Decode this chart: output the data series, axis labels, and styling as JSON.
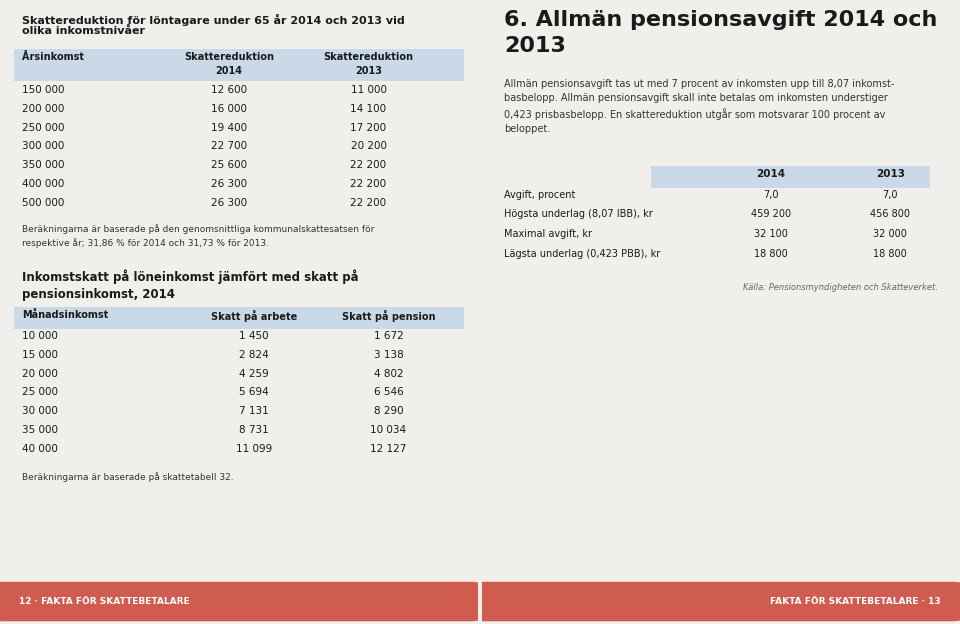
{
  "bg_color": "#f0efeb",
  "header_bg": "#c9d9e8",
  "footer_bg": "#d05c50",
  "footer_text_left": "12 · FAKTA FÖR SKATTEBETALARE",
  "footer_text_right": "FAKTA FÖR SKATTEBETALARE · 13",
  "title1_line1": "Skattereduktion för löntagare under 65 år 2014 och 2013 vid",
  "title1_line2": "olika inkomstnivåer",
  "table1_header1": [
    "Årsinkomst",
    "Skattereduktion",
    "Skattereduktion"
  ],
  "table1_header2": [
    "",
    "2014",
    "2013"
  ],
  "table1_rows": [
    [
      "150 000",
      "12 600",
      "11 000"
    ],
    [
      "200 000",
      "16 000",
      "14 100"
    ],
    [
      "250 000",
      "19 400",
      "17 200"
    ],
    [
      "300 000",
      "22 700",
      "20 200"
    ],
    [
      "350 000",
      "25 600",
      "22 200"
    ],
    [
      "400 000",
      "26 300",
      "22 200"
    ],
    [
      "500 000",
      "26 300",
      "22 200"
    ]
  ],
  "footnote1": "Beräkningarna är baserade på den genomsnittliga kommunalskattesatsen för\nrespektive år; 31,86 % för 2014 och 31,73 % för 2013.",
  "title2": "Inkomstskatt på löneinkomst jämfört med skatt på\npensionsinkomst, 2014",
  "table2_header": [
    "Månadsinkomst",
    "Skatt på arbete",
    "Skatt på pension"
  ],
  "table2_rows": [
    [
      "10 000",
      "1 450",
      "1 672"
    ],
    [
      "15 000",
      "2 824",
      "3 138"
    ],
    [
      "20 000",
      "4 259",
      "4 802"
    ],
    [
      "25 000",
      "5 694",
      "6 546"
    ],
    [
      "30 000",
      "7 131",
      "8 290"
    ],
    [
      "35 000",
      "8 731",
      "10 034"
    ],
    [
      "40 000",
      "11 099",
      "12 127"
    ]
  ],
  "footnote2": "Beräkningarna är baserade på skattetabell 32.",
  "title3_line1": "6. Allmän pensionsavgift 2014 och",
  "title3_line2": "2013",
  "body3": "Allmän pensionsavgift tas ut med 7 procent av inkomsten upp till 8,07 inkomst-\nbasbelopp. Allmän pensionsavgift skall inte betalas om inkomsten understiger\n0,423 prisbasbelopp. En skattereduktion utgår som motsvarar 100 procent av\nbeloppet.",
  "table3_header": [
    "2014",
    "2013"
  ],
  "table3_rows": [
    [
      "Avgift, procent",
      "7,0",
      "7,0"
    ],
    [
      "Högsta underlag (8,07 IBB), kr",
      "459 200",
      "456 800"
    ],
    [
      "Maximal avgift, kr",
      "32 100",
      "32 000"
    ],
    [
      "Lägsta underlag (0,423 PBB), kr",
      "18 800",
      "18 800"
    ]
  ],
  "source3": "Källa: Pensionsmyndigheten och Skatteverket."
}
